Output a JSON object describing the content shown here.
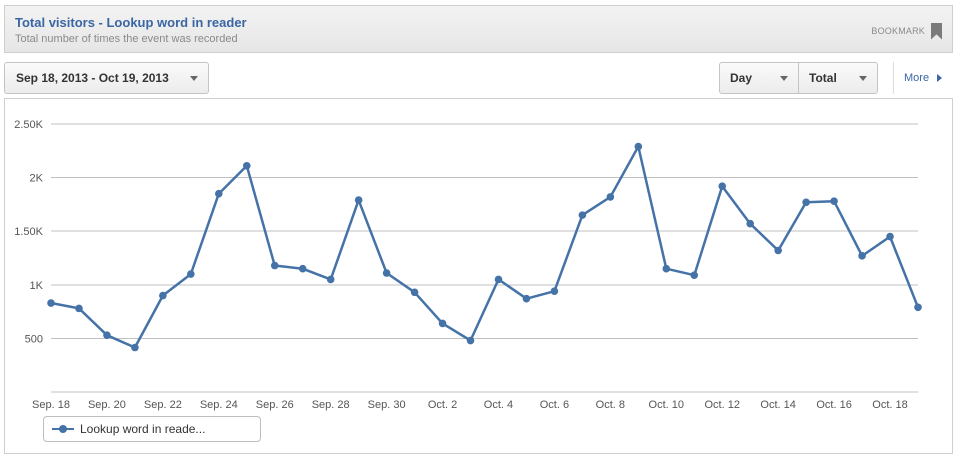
{
  "header": {
    "title": "Total visitors - Lookup word in reader",
    "subtitle": "Total number of times the event was recorded",
    "bookmark_label": "BOOKMARK",
    "bookmark_icon": "bookmark-icon"
  },
  "controls": {
    "date_range": "Sep 18, 2013 - Oct 19, 2013",
    "granularity": "Day",
    "metric": "Total",
    "more_label": "More",
    "more_icon": "chevron-right-icon"
  },
  "colors": {
    "series": "#4572a7",
    "title": "#3a66a3",
    "grid": "#c0c0c0"
  },
  "chart_data": {
    "type": "line",
    "x": [
      "Sep. 18",
      "Sep. 19",
      "Sep. 20",
      "Sep. 21",
      "Sep. 22",
      "Sep. 23",
      "Sep. 24",
      "Sep. 25",
      "Sep. 26",
      "Sep. 27",
      "Sep. 28",
      "Sep. 29",
      "Sep. 30",
      "Oct. 1",
      "Oct. 2",
      "Oct. 3",
      "Oct. 4",
      "Oct. 5",
      "Oct. 6",
      "Oct. 7",
      "Oct. 8",
      "Oct. 9",
      "Oct. 10",
      "Oct. 11",
      "Oct. 12",
      "Oct. 13",
      "Oct. 14",
      "Oct. 15",
      "Oct. 16",
      "Oct. 17",
      "Oct. 18",
      "Oct. 19"
    ],
    "x_tick_labels": [
      "Sep. 18",
      "Sep. 20",
      "Sep. 22",
      "Sep. 24",
      "Sep. 26",
      "Sep. 28",
      "Sep. 30",
      "Oct. 2",
      "Oct. 4",
      "Oct. 6",
      "Oct. 8",
      "Oct. 10",
      "Oct. 12",
      "Oct. 14",
      "Oct. 16",
      "Oct. 18"
    ],
    "y_tick_values": [
      500,
      1000,
      1500,
      2000,
      2500
    ],
    "y_tick_labels": [
      "500",
      "1K",
      "1.50K",
      "2K",
      "2.50K"
    ],
    "ylim": [
      0,
      2500
    ],
    "grid": true,
    "legend_position": "bottom-left",
    "series": [
      {
        "name": "Lookup word in reade...",
        "values": [
          830,
          780,
          530,
          415,
          900,
          1100,
          1850,
          2110,
          1180,
          1150,
          1050,
          1790,
          1110,
          930,
          640,
          480,
          1050,
          870,
          940,
          1650,
          1820,
          2290,
          1150,
          1090,
          1920,
          1570,
          1320,
          1770,
          1780,
          1270,
          1450,
          790
        ]
      }
    ]
  }
}
